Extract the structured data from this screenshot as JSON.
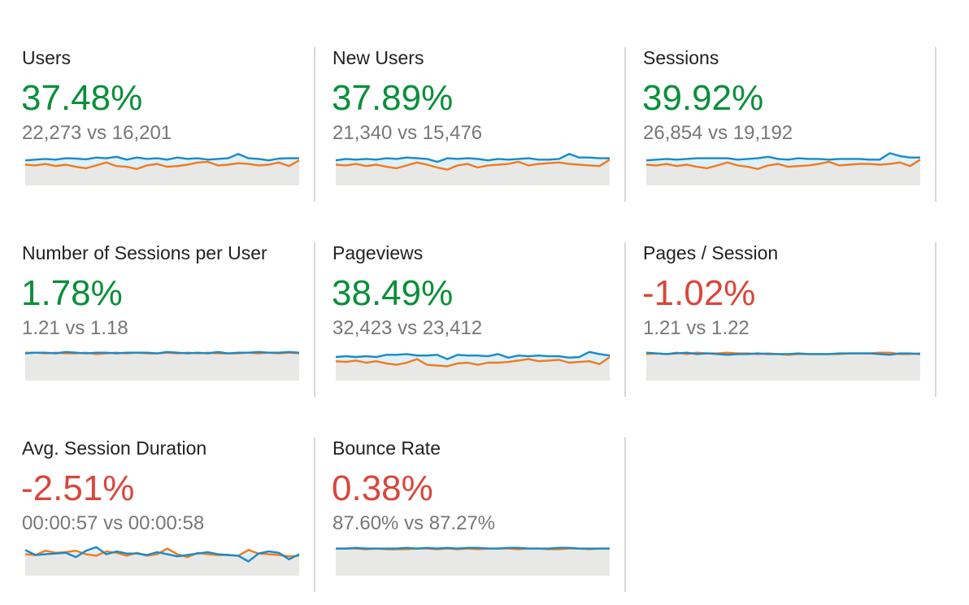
{
  "colors": {
    "positive": "#0a8f3a",
    "negative": "#d9473a",
    "current_series": "#1a8ac7",
    "previous_series": "#f07b1e",
    "area_fill": "#e8e8e6",
    "current_fill": "#dff0f7"
  },
  "metrics": [
    {
      "label": "Users",
      "change": "37.48%",
      "trend": "positive",
      "compare": "22,273 vs 16,201",
      "chart_data": {
        "type": "line",
        "series": [
          {
            "values": [
              0.3,
              0.28,
              0.26,
              0.28,
              0.24,
              0.25,
              0.27,
              0.22,
              0.24,
              0.2,
              0.28,
              0.22,
              0.26,
              0.24,
              0.28,
              0.22,
              0.26,
              0.24,
              0.28,
              0.26,
              0.24,
              0.12,
              0.24,
              0.26,
              0.3,
              0.25,
              0.24,
              0.24
            ]
          },
          {
            "values": [
              0.42,
              0.44,
              0.4,
              0.46,
              0.42,
              0.48,
              0.52,
              0.44,
              0.36,
              0.46,
              0.48,
              0.54,
              0.44,
              0.4,
              0.48,
              0.46,
              0.42,
              0.36,
              0.34,
              0.44,
              0.42,
              0.38,
              0.4,
              0.44,
              0.42,
              0.36,
              0.46,
              0.3
            ]
          }
        ]
      }
    },
    {
      "label": "New Users",
      "change": "37.89%",
      "trend": "positive",
      "compare": "21,340 vs 15,476",
      "chart_data": {
        "type": "line",
        "series": [
          {
            "values": [
              0.3,
              0.26,
              0.28,
              0.26,
              0.28,
              0.24,
              0.26,
              0.22,
              0.24,
              0.26,
              0.34,
              0.24,
              0.26,
              0.24,
              0.26,
              0.3,
              0.26,
              0.28,
              0.26,
              0.24,
              0.28,
              0.28,
              0.26,
              0.12,
              0.22,
              0.22,
              0.24,
              0.24
            ]
          },
          {
            "values": [
              0.42,
              0.44,
              0.4,
              0.46,
              0.42,
              0.48,
              0.52,
              0.44,
              0.36,
              0.42,
              0.5,
              0.56,
              0.44,
              0.4,
              0.5,
              0.44,
              0.42,
              0.4,
              0.34,
              0.44,
              0.4,
              0.38,
              0.36,
              0.4,
              0.42,
              0.44,
              0.46,
              0.28
            ]
          }
        ]
      }
    },
    {
      "label": "Sessions",
      "change": "39.92%",
      "trend": "positive",
      "compare": "26,854 vs 19,192",
      "chart_data": {
        "type": "line",
        "series": [
          {
            "values": [
              0.3,
              0.28,
              0.26,
              0.28,
              0.26,
              0.24,
              0.24,
              0.24,
              0.24,
              0.28,
              0.26,
              0.24,
              0.2,
              0.26,
              0.28,
              0.24,
              0.26,
              0.26,
              0.28,
              0.26,
              0.26,
              0.26,
              0.28,
              0.28,
              0.1,
              0.18,
              0.22,
              0.22
            ]
          },
          {
            "values": [
              0.42,
              0.44,
              0.4,
              0.46,
              0.42,
              0.48,
              0.52,
              0.44,
              0.36,
              0.44,
              0.48,
              0.54,
              0.44,
              0.4,
              0.48,
              0.46,
              0.44,
              0.4,
              0.34,
              0.44,
              0.42,
              0.4,
              0.4,
              0.42,
              0.4,
              0.36,
              0.46,
              0.28
            ]
          }
        ]
      }
    },
    {
      "label": "Number of Sessions per User",
      "change": "1.78%",
      "trend": "positive",
      "compare": "1.21 vs 1.18",
      "chart_data": {
        "type": "line",
        "series": [
          {
            "values": [
              0.24,
              0.22,
              0.22,
              0.24,
              0.2,
              0.22,
              0.24,
              0.22,
              0.22,
              0.24,
              0.22,
              0.22,
              0.22,
              0.24,
              0.2,
              0.22,
              0.24,
              0.22,
              0.24,
              0.2,
              0.24,
              0.22,
              0.22,
              0.2,
              0.22,
              0.22,
              0.2,
              0.22
            ]
          },
          {
            "values": [
              0.22,
              0.22,
              0.24,
              0.22,
              0.24,
              0.24,
              0.22,
              0.26,
              0.24,
              0.22,
              0.24,
              0.22,
              0.24,
              0.24,
              0.22,
              0.24,
              0.22,
              0.24,
              0.22,
              0.24,
              0.24,
              0.24,
              0.22,
              0.24,
              0.22,
              0.24,
              0.22,
              0.24
            ]
          }
        ]
      }
    },
    {
      "label": "Pageviews",
      "change": "38.49%",
      "trend": "positive",
      "compare": "32,423 vs 23,412",
      "chart_data": {
        "type": "line",
        "series": [
          {
            "values": [
              0.34,
              0.32,
              0.34,
              0.32,
              0.34,
              0.28,
              0.28,
              0.26,
              0.3,
              0.3,
              0.28,
              0.4,
              0.28,
              0.3,
              0.3,
              0.32,
              0.26,
              0.36,
              0.3,
              0.32,
              0.3,
              0.32,
              0.32,
              0.36,
              0.34,
              0.2,
              0.26,
              0.3
            ]
          },
          {
            "values": [
              0.46,
              0.48,
              0.44,
              0.5,
              0.46,
              0.52,
              0.56,
              0.5,
              0.4,
              0.56,
              0.58,
              0.6,
              0.52,
              0.5,
              0.56,
              0.5,
              0.5,
              0.48,
              0.44,
              0.4,
              0.46,
              0.44,
              0.42,
              0.5,
              0.48,
              0.46,
              0.54,
              0.34
            ]
          }
        ]
      }
    },
    {
      "label": "Pages / Session",
      "change": "-1.02%",
      "trend": "negative",
      "compare": "1.21 vs 1.22",
      "chart_data": {
        "type": "line",
        "series": [
          {
            "values": [
              0.22,
              0.24,
              0.26,
              0.24,
              0.22,
              0.26,
              0.24,
              0.26,
              0.28,
              0.26,
              0.26,
              0.24,
              0.26,
              0.26,
              0.26,
              0.24,
              0.26,
              0.26,
              0.26,
              0.24,
              0.24,
              0.24,
              0.24,
              0.26,
              0.28,
              0.24,
              0.24,
              0.26
            ]
          },
          {
            "values": [
              0.26,
              0.24,
              0.26,
              0.22,
              0.26,
              0.22,
              0.24,
              0.24,
              0.22,
              0.24,
              0.24,
              0.26,
              0.24,
              0.26,
              0.28,
              0.26,
              0.26,
              0.26,
              0.26,
              0.26,
              0.24,
              0.24,
              0.24,
              0.22,
              0.22,
              0.26,
              0.26,
              0.24
            ]
          }
        ]
      }
    },
    {
      "label": "Avg. Session Duration",
      "change": "-2.51%",
      "trend": "negative",
      "compare": "00:00:57 vs 00:00:58",
      "chart_data": {
        "type": "line",
        "series": [
          {
            "values": [
              0.28,
              0.42,
              0.4,
              0.38,
              0.36,
              0.48,
              0.3,
              0.2,
              0.4,
              0.32,
              0.38,
              0.38,
              0.42,
              0.34,
              0.4,
              0.46,
              0.42,
              0.38,
              0.34,
              0.4,
              0.42,
              0.44,
              0.6,
              0.38,
              0.32,
              0.36,
              0.54,
              0.4
            ]
          },
          {
            "values": [
              0.4,
              0.42,
              0.3,
              0.36,
              0.34,
              0.3,
              0.4,
              0.44,
              0.32,
              0.36,
              0.44,
              0.36,
              0.44,
              0.4,
              0.24,
              0.4,
              0.48,
              0.36,
              0.4,
              0.42,
              0.42,
              0.44,
              0.28,
              0.38,
              0.4,
              0.42,
              0.46,
              0.44
            ]
          }
        ]
      }
    },
    {
      "label": "Bounce Rate",
      "change": "0.38%",
      "trend": "negative",
      "compare": "87.60% vs 87.27%",
      "chart_data": {
        "type": "line",
        "series": [
          {
            "values": [
              0.24,
              0.24,
              0.22,
              0.24,
              0.24,
              0.24,
              0.24,
              0.22,
              0.24,
              0.22,
              0.24,
              0.22,
              0.24,
              0.22,
              0.22,
              0.24,
              0.24,
              0.22,
              0.22,
              0.24,
              0.24,
              0.24,
              0.22,
              0.22,
              0.24,
              0.24,
              0.24,
              0.24
            ]
          },
          {
            "values": [
              0.24,
              0.24,
              0.24,
              0.26,
              0.24,
              0.26,
              0.26,
              0.26,
              0.24,
              0.24,
              0.26,
              0.24,
              0.26,
              0.24,
              0.26,
              0.24,
              0.24,
              0.24,
              0.26,
              0.24,
              0.24,
              0.26,
              0.26,
              0.24,
              0.24,
              0.26,
              0.24,
              0.24
            ]
          }
        ]
      }
    }
  ]
}
